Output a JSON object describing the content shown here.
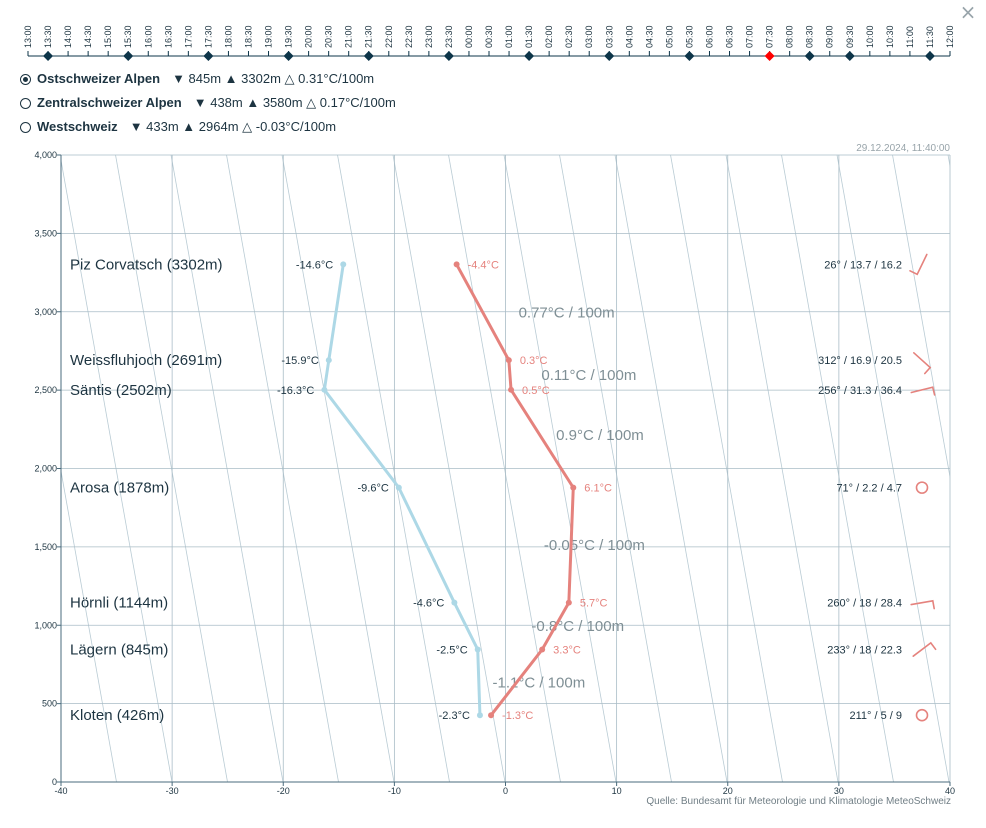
{
  "timeline": {
    "labels": [
      "13:00",
      "13:30",
      "14:00",
      "14:30",
      "15:00",
      "15:30",
      "16:00",
      "16:30",
      "17:00",
      "17:30",
      "18:00",
      "18:30",
      "19:00",
      "19:30",
      "20:00",
      "20:30",
      "21:00",
      "21:30",
      "22:00",
      "22:30",
      "23:00",
      "23:30",
      "00:00",
      "00:30",
      "01:00",
      "01:30",
      "02:00",
      "02:30",
      "03:00",
      "03:30",
      "04:00",
      "04:30",
      "05:00",
      "05:30",
      "06:00",
      "06:30",
      "07:00",
      "07:30",
      "08:00",
      "08:30",
      "09:00",
      "09:30",
      "10:00",
      "10:30",
      "11:00",
      "11:30",
      "12:00"
    ],
    "markers": [
      "13:30",
      "15:30",
      "17:30",
      "19:30",
      "21:30",
      "23:30",
      "01:30",
      "03:30",
      "05:30",
      "07:30",
      "08:30",
      "09:30",
      "11:30"
    ],
    "selected": "07:30",
    "marker_color": "#0d3549",
    "selected_color": "#ff0000"
  },
  "close_label": "×",
  "regions": [
    {
      "name": "Ostschweizer Alpen",
      "stats": "▼ 845m ▲ 3302m △ 0.31°C/100m",
      "selected": true
    },
    {
      "name": "Zentralschweizer Alpen",
      "stats": "▼ 438m ▲ 3580m △ 0.17°C/100m",
      "selected": false
    },
    {
      "name": "Westschweiz",
      "stats": "▼ 433m ▲ 2964m △ -0.03°C/100m",
      "selected": false
    }
  ],
  "chart_data": {
    "type": "line",
    "timestamp": "29.12.2024, 11:40:00",
    "source": "Quelle: Bundesamt für Meteorologie und Klimatologie MeteoSchweiz",
    "xlim": [
      -40,
      40
    ],
    "ylim": [
      0,
      4000
    ],
    "x_ticks": [
      "-40",
      "-30",
      "-20",
      "-10",
      "0",
      "10",
      "20",
      "30",
      "40"
    ],
    "y_ticks": [
      "0",
      "500",
      "1,000",
      "1,500",
      "2,000",
      "2,500",
      "3,000",
      "3,500",
      "4,000"
    ],
    "grid": true,
    "colors": {
      "temperature": "#e5827d",
      "dewpoint": "#add8e6",
      "lapse_text": "#7f8f95",
      "axis": "#4a6b7c",
      "grid": "#a9bcc6"
    },
    "stations": [
      {
        "label": "Kloten (426m)",
        "altitude": 426,
        "temperature": -1.3,
        "temp_label": "-1.3°C",
        "dewpoint": -2.3,
        "dew_label": "-2.3°C",
        "wind": "211° / 5 / 9",
        "calm": true
      },
      {
        "label": "Lägern (845m)",
        "altitude": 845,
        "temperature": 3.3,
        "temp_label": "3.3°C",
        "dewpoint": -2.5,
        "dew_label": "-2.5°C",
        "wind": "233° / 18 / 22.3",
        "calm": false
      },
      {
        "label": "Hörnli (1144m)",
        "altitude": 1144,
        "temperature": 5.7,
        "temp_label": "5.7°C",
        "dewpoint": -4.6,
        "dew_label": "-4.6°C",
        "wind": "260° / 18 / 28.4",
        "calm": false
      },
      {
        "label": "Arosa (1878m)",
        "altitude": 1878,
        "temperature": 6.1,
        "temp_label": "6.1°C",
        "dewpoint": -9.6,
        "dew_label": "-9.6°C",
        "wind": "71° / 2.2 / 4.7",
        "calm": true
      },
      {
        "label": "Säntis (2502m)",
        "altitude": 2502,
        "temperature": 0.5,
        "temp_label": "0.5°C",
        "dewpoint": -16.3,
        "dew_label": "-16.3°C",
        "wind": "256° / 31.3 / 36.4",
        "calm": false
      },
      {
        "label": "Weissfluhjoch (2691m)",
        "altitude": 2691,
        "temperature": 0.3,
        "temp_label": "0.3°C",
        "dewpoint": -15.9,
        "dew_label": "-15.9°C",
        "wind": "312° / 16.9 / 20.5",
        "calm": false
      },
      {
        "label": "Piz Corvatsch (3302m)",
        "altitude": 3302,
        "temperature": -4.4,
        "temp_label": "-4.4°C",
        "dewpoint": -14.6,
        "dew_label": "-14.6°C",
        "wind": "26° / 13.7 / 16.2",
        "calm": false
      }
    ],
    "lapse_rates": [
      {
        "text": "-1.1°C / 100m",
        "x": 3.0,
        "y": 635
      },
      {
        "text": "-0.8°C / 100m",
        "x": 6.5,
        "y": 995
      },
      {
        "text": "-0.05°C / 100m",
        "x": 8.0,
        "y": 1511
      },
      {
        "text": "0.9°C / 100m",
        "x": 8.5,
        "y": 2215
      },
      {
        "text": "0.11°C / 100m",
        "x": 7.5,
        "y": 2596
      },
      {
        "text": "0.77°C / 100m",
        "x": 5.5,
        "y": 2996
      }
    ]
  }
}
